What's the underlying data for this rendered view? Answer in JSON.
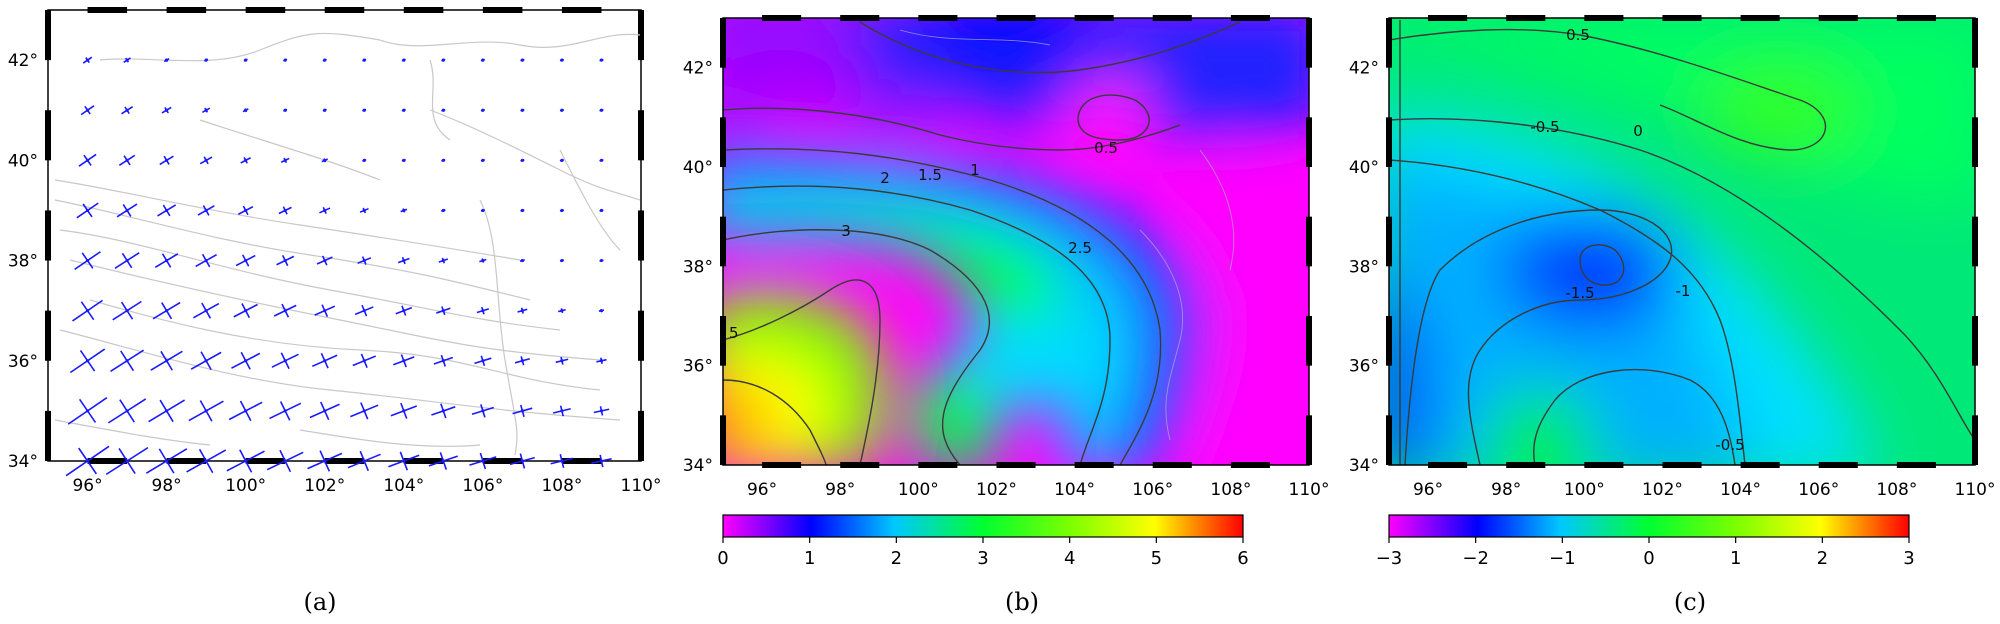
{
  "panels": [
    {
      "id": "a",
      "label": "(a)",
      "kind": "strain-rate crosses",
      "x_ticks": [
        "96°",
        "98°",
        "100°",
        "102°",
        "104°",
        "106°",
        "108°",
        "110°"
      ],
      "y_ticks": [
        "34°",
        "36°",
        "38°",
        "40°",
        "42°"
      ],
      "symbol_color": "#1a1aff"
    },
    {
      "id": "b",
      "label": "(b)",
      "kind": "filled contour map",
      "x_ticks": [
        "96°",
        "98°",
        "100°",
        "102°",
        "104°",
        "106°",
        "108°",
        "110°"
      ],
      "y_ticks": [
        "34°",
        "36°",
        "38°",
        "40°",
        "42°"
      ],
      "contour_labels": [
        "0.5",
        "1",
        "1.5",
        "2",
        "2.5",
        "3",
        "5"
      ],
      "colorbar": {
        "ticks": [
          "0",
          "1",
          "2",
          "3",
          "4",
          "5",
          "6"
        ],
        "range": [
          0,
          6
        ]
      }
    },
    {
      "id": "c",
      "label": "(c)",
      "kind": "filled contour map",
      "x_ticks": [
        "96°",
        "98°",
        "100°",
        "102°",
        "104°",
        "106°",
        "108°",
        "110°"
      ],
      "y_ticks": [
        "34°",
        "36°",
        "38°",
        "40°",
        "42°"
      ],
      "contour_labels": [
        "0.5",
        "0",
        "-0.5",
        "-1",
        "-1.5",
        "-0.5"
      ],
      "colorbar": {
        "ticks": [
          "−3",
          "−2",
          "−1",
          "0",
          "1",
          "2",
          "3"
        ],
        "range": [
          -3,
          3
        ]
      }
    }
  ]
}
